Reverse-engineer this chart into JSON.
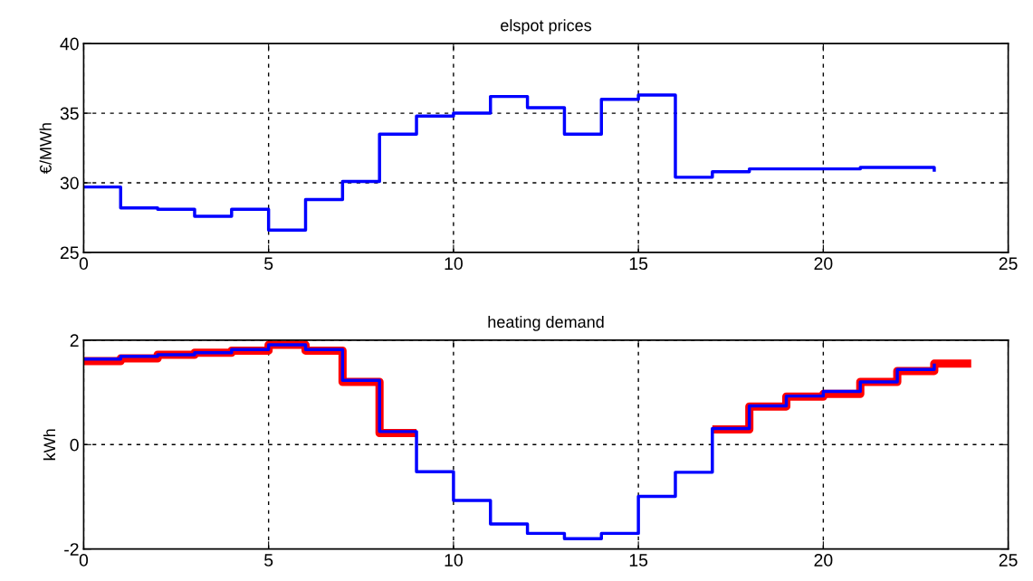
{
  "chart_data": [
    {
      "type": "step",
      "title": "elspot prices",
      "ylabel": "€/MWh",
      "x": [
        0,
        1,
        2,
        3,
        4,
        5,
        6,
        7,
        8,
        9,
        10,
        11,
        12,
        13,
        14,
        15,
        16,
        17,
        18,
        19,
        20,
        21,
        22,
        23
      ],
      "series": [
        {
          "color": "#0000ff",
          "values": [
            29.7,
            28.2,
            28.1,
            27.6,
            28.1,
            26.6,
            28.8,
            30.1,
            33.5,
            34.8,
            35.0,
            36.2,
            35.4,
            33.5,
            36.0,
            36.3,
            30.4,
            30.8,
            31.0,
            31.0,
            31.0,
            31.1,
            31.1,
            30.8
          ]
        }
      ],
      "xlim": [
        0,
        25
      ],
      "xticks": [
        0,
        5,
        10,
        15,
        20,
        25
      ],
      "ylim": [
        25,
        40
      ],
      "yticks": [
        25,
        30,
        35,
        40
      ],
      "grid": true,
      "line_style": "solid"
    },
    {
      "type": "step",
      "title": "heating demand",
      "ylabel": "kWh",
      "series": [
        {
          "color": "#ff0000",
          "x": [
            0,
            1,
            2,
            3,
            4,
            5,
            6,
            7,
            8,
            9,
            10,
            11,
            12,
            13,
            14,
            15,
            16,
            17,
            18,
            19,
            20,
            21,
            22,
            23,
            24
          ],
          "values": [
            1.6,
            1.65,
            1.72,
            1.76,
            1.8,
            1.91,
            1.8,
            1.2,
            0.22,
            null,
            null,
            null,
            null,
            null,
            null,
            null,
            null,
            0.29,
            0.73,
            0.92,
            0.97,
            1.2,
            1.41,
            1.55,
            1.55
          ]
        },
        {
          "color": "#0000ff",
          "x": [
            0,
            1,
            2,
            3,
            4,
            5,
            6,
            7,
            8,
            9,
            10,
            11,
            12,
            13,
            14,
            15,
            16,
            17,
            18,
            19,
            20,
            21,
            22,
            23
          ],
          "values": [
            1.64,
            1.69,
            1.72,
            1.76,
            1.82,
            1.91,
            1.82,
            1.23,
            0.25,
            -0.52,
            -1.07,
            -1.52,
            -1.7,
            -1.8,
            -1.7,
            -0.99,
            -0.53,
            0.31,
            0.74,
            0.93,
            1.02,
            1.2,
            1.44,
            1.55
          ]
        }
      ],
      "xlim": [
        0,
        25
      ],
      "xticks": [
        0,
        5,
        10,
        15,
        20,
        25
      ],
      "ylim": [
        -2,
        2
      ],
      "yticks": [
        -2,
        0,
        2
      ],
      "grid": true,
      "line_style": "solid"
    }
  ]
}
